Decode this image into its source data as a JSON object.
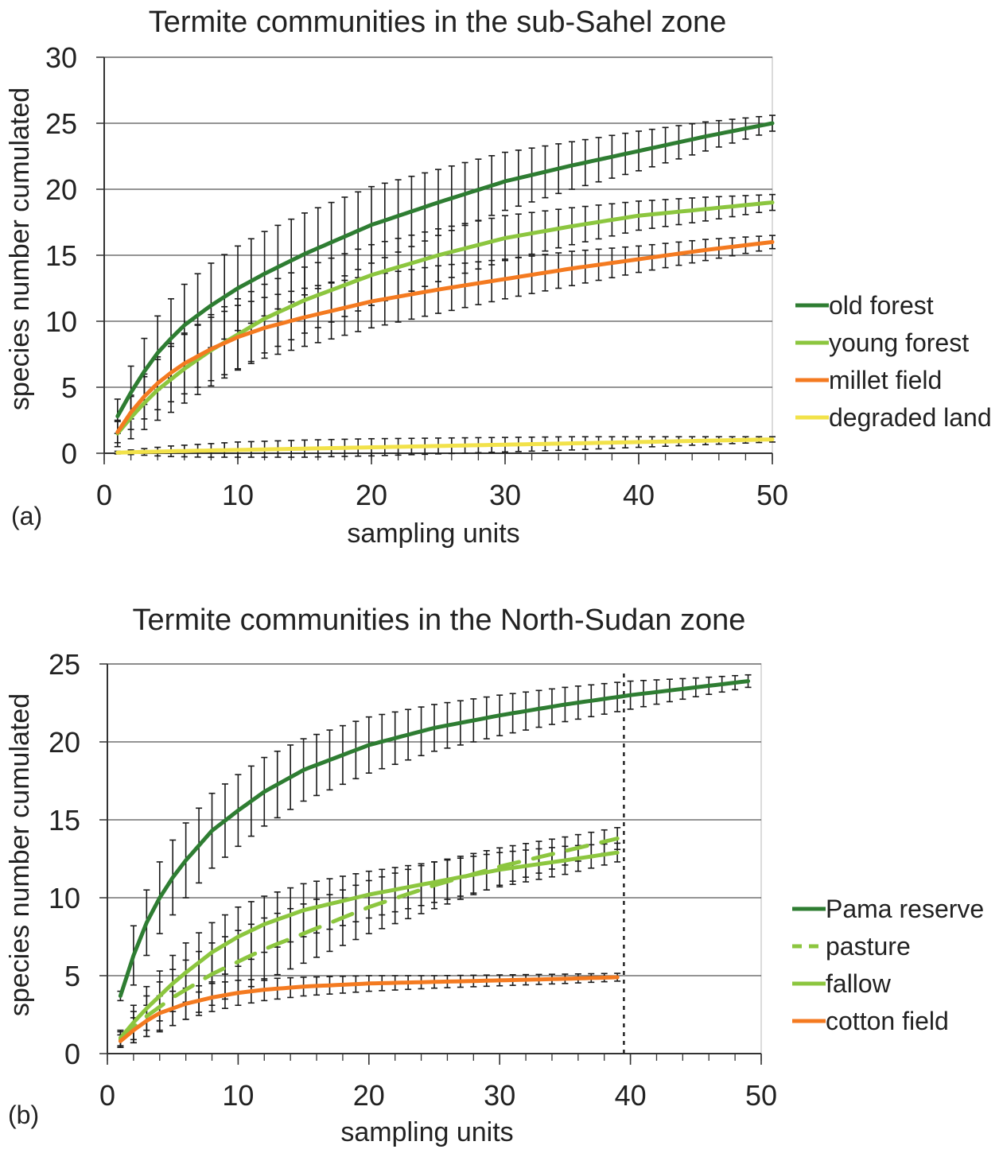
{
  "chart_data": [
    {
      "type": "line",
      "panel_label": "(a)",
      "title": "Termite communities in the sub-Sahel zone",
      "xlabel": "sampling units",
      "ylabel": "species number cumulated",
      "xlim": [
        0,
        50
      ],
      "ylim": [
        0,
        30
      ],
      "xticks": [
        "0",
        "10",
        "20",
        "30",
        "40",
        "50"
      ],
      "yticks": [
        "0",
        "5",
        "10",
        "15",
        "20",
        "25",
        "30"
      ],
      "grid": "horizontal",
      "legend_position": "right",
      "error_bars": true,
      "series": [
        {
          "name": "old forest",
          "color": "#2e7d32",
          "x": [
            1,
            2,
            3,
            4,
            5,
            6,
            8,
            10,
            12,
            15,
            20,
            25,
            30,
            35,
            40,
            45,
            50
          ],
          "y": [
            2.8,
            4.6,
            6.2,
            7.6,
            8.7,
            9.7,
            11.2,
            12.5,
            13.6,
            15.1,
            17.3,
            19.0,
            20.6,
            21.8,
            22.9,
            24.0,
            25.0
          ],
          "err": [
            1.3,
            2.0,
            2.5,
            2.8,
            3.0,
            3.1,
            3.2,
            3.2,
            3.2,
            3.1,
            2.9,
            2.5,
            2.2,
            1.8,
            1.5,
            1.1,
            0.6
          ]
        },
        {
          "name": "young forest",
          "color": "#8cc63f",
          "x": [
            1,
            2,
            3,
            4,
            5,
            6,
            8,
            10,
            12,
            15,
            20,
            25,
            30,
            35,
            40,
            45,
            50
          ],
          "y": [
            1.5,
            2.7,
            3.8,
            4.8,
            5.6,
            6.4,
            7.8,
            9.0,
            10.2,
            11.6,
            13.5,
            15.0,
            16.3,
            17.2,
            18.0,
            18.5,
            19.0
          ],
          "err": [
            1.0,
            1.6,
            2.0,
            2.3,
            2.5,
            2.6,
            2.7,
            2.7,
            2.6,
            2.5,
            2.3,
            2.0,
            1.7,
            1.4,
            1.1,
            0.9,
            0.6
          ]
        },
        {
          "name": "millet field",
          "color": "#f47a20",
          "x": [
            1,
            2,
            3,
            4,
            5,
            6,
            8,
            10,
            12,
            15,
            20,
            25,
            30,
            35,
            40,
            45,
            50
          ],
          "y": [
            1.6,
            3.1,
            4.3,
            5.3,
            6.1,
            6.8,
            7.9,
            8.8,
            9.5,
            10.3,
            11.5,
            12.4,
            13.2,
            14.0,
            14.7,
            15.4,
            16.0
          ],
          "err": [
            0.8,
            1.3,
            1.7,
            2.0,
            2.2,
            2.3,
            2.4,
            2.4,
            2.3,
            2.2,
            2.0,
            1.8,
            1.5,
            1.3,
            1.0,
            0.8,
            0.5
          ]
        },
        {
          "name": "degraded land",
          "color": "#f2e24a",
          "x": [
            1,
            5,
            10,
            15,
            20,
            25,
            30,
            35,
            40,
            45,
            50
          ],
          "y": [
            0.05,
            0.15,
            0.25,
            0.35,
            0.45,
            0.55,
            0.65,
            0.75,
            0.85,
            0.95,
            1.05
          ],
          "err": [
            0.1,
            0.4,
            0.6,
            0.65,
            0.65,
            0.6,
            0.55,
            0.5,
            0.4,
            0.3,
            0.2
          ]
        }
      ]
    },
    {
      "type": "line",
      "panel_label": "(b)",
      "title": "Termite communities in the North-Sudan zone",
      "xlabel": "sampling units",
      "ylabel": "species number cumulated",
      "xlim": [
        0,
        50
      ],
      "ylim": [
        0,
        25
      ],
      "xticks": [
        "0",
        "10",
        "20",
        "30",
        "40",
        "50"
      ],
      "yticks": [
        "0",
        "5",
        "10",
        "15",
        "20",
        "25"
      ],
      "grid": "horizontal",
      "legend_position": "right",
      "error_bars": true,
      "reference_line_x": 39.5,
      "series": [
        {
          "name": "Pama reserve",
          "color": "#2e7d32",
          "dashed": false,
          "x": [
            1,
            2,
            3,
            4,
            5,
            6,
            8,
            10,
            12,
            15,
            20,
            25,
            30,
            35,
            40,
            45,
            49
          ],
          "y": [
            3.7,
            6.3,
            8.4,
            10.0,
            11.3,
            12.4,
            14.3,
            15.6,
            16.8,
            18.2,
            19.8,
            20.9,
            21.7,
            22.4,
            23.0,
            23.5,
            23.9
          ],
          "err": [
            0.3,
            1.9,
            2.1,
            2.3,
            2.4,
            2.4,
            2.4,
            2.3,
            2.2,
            2.0,
            1.8,
            1.5,
            1.3,
            1.1,
            0.9,
            0.6,
            0.4
          ]
        },
        {
          "name": "pasture",
          "color": "#8cc63f",
          "dashed": true,
          "x": [
            1,
            2,
            3,
            4,
            5,
            6,
            8,
            10,
            12,
            15,
            20,
            25,
            30,
            35,
            39
          ],
          "y": [
            0.9,
            1.7,
            2.4,
            3.0,
            3.6,
            4.1,
            5.1,
            5.9,
            6.7,
            7.7,
            9.4,
            10.8,
            12.0,
            13.0,
            13.8
          ],
          "err": [
            0.5,
            1.0,
            1.3,
            1.6,
            1.8,
            1.9,
            2.0,
            2.0,
            2.0,
            1.9,
            1.7,
            1.5,
            1.2,
            0.9,
            0.7
          ]
        },
        {
          "name": "fallow",
          "color": "#8cc63f",
          "dashed": false,
          "x": [
            1,
            2,
            3,
            4,
            5,
            6,
            8,
            10,
            12,
            15,
            20,
            25,
            30,
            35,
            39
          ],
          "y": [
            1.0,
            2.0,
            2.9,
            3.7,
            4.5,
            5.2,
            6.5,
            7.5,
            8.3,
            9.2,
            10.2,
            11.0,
            11.8,
            12.4,
            12.9
          ],
          "err": [
            0.5,
            1.1,
            1.4,
            1.6,
            1.8,
            1.9,
            1.9,
            1.9,
            1.8,
            1.7,
            1.5,
            1.3,
            1.1,
            0.9,
            0.6
          ]
        },
        {
          "name": "cotton field",
          "color": "#f47a20",
          "dashed": false,
          "x": [
            1,
            2,
            3,
            4,
            5,
            6,
            8,
            10,
            12,
            15,
            20,
            25,
            30,
            35,
            39
          ],
          "y": [
            0.8,
            1.5,
            2.1,
            2.6,
            2.9,
            3.2,
            3.6,
            3.9,
            4.1,
            4.3,
            4.5,
            4.6,
            4.7,
            4.8,
            4.9
          ],
          "err": [
            0.4,
            0.8,
            1.0,
            1.1,
            1.1,
            1.0,
            0.9,
            0.8,
            0.7,
            0.6,
            0.5,
            0.4,
            0.35,
            0.3,
            0.25
          ]
        }
      ]
    }
  ]
}
